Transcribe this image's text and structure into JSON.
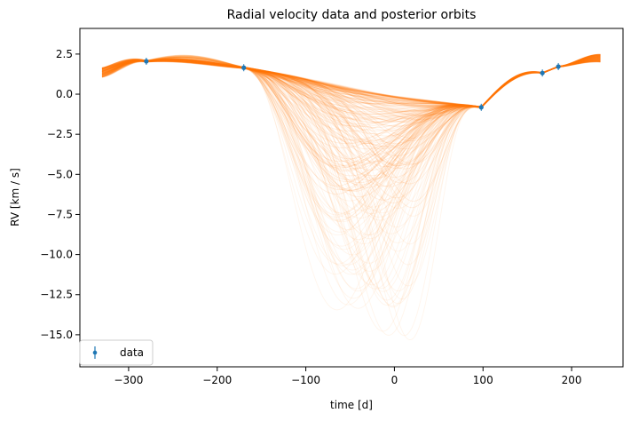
{
  "chart_data": {
    "type": "line",
    "title": "Radial velocity data and posterior orbits",
    "xlabel": "time [d]",
    "ylabel": "RV [km / s]",
    "xlim": [
      -355,
      258
    ],
    "ylim": [
      -17.0,
      4.1
    ],
    "xticks": [
      -300,
      -200,
      -100,
      0,
      100,
      200
    ],
    "xtick_labels": [
      "−300",
      "−200",
      "−100",
      "0",
      "100",
      "200"
    ],
    "yticks": [
      2.5,
      0.0,
      -2.5,
      -5.0,
      -7.5,
      -10.0,
      -12.5,
      -15.0
    ],
    "ytick_labels": [
      "2.5",
      "0.0",
      "−2.5",
      "−5.0",
      "−7.5",
      "−10.0",
      "−12.5",
      "−15.0"
    ],
    "grid": false,
    "legend": {
      "position": "lower-left",
      "entries": [
        "data"
      ]
    },
    "series": [
      {
        "name": "data",
        "kind": "scatter-with-errorbars",
        "color": "#1f77b4",
        "x": [
          -280,
          -170,
          98,
          167,
          185
        ],
        "y": [
          2.05,
          1.65,
          -0.82,
          1.32,
          1.72
        ]
      }
    ],
    "posterior_orbits": {
      "color": "#ff7f0e",
      "x_range": [
        -330,
        233
      ],
      "minimum_range": [
        -16.3,
        -0.7
      ],
      "minimum_time_range": [
        -70,
        20
      ]
    }
  }
}
